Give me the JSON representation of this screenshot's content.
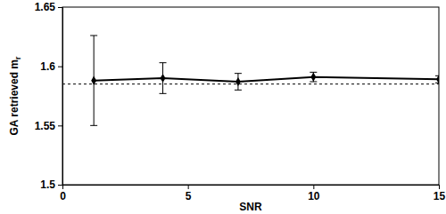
{
  "chart_data": {
    "type": "line",
    "xlabel": "SNR",
    "ylabel": "GA retrieved m",
    "ylabel_sub": "r",
    "x": [
      1.25,
      4,
      7,
      10,
      15
    ],
    "series": [
      {
        "values": [
          1.588,
          1.59,
          1.587,
          1.591,
          1.589
        ],
        "errors": [
          0.038,
          0.013,
          0.007,
          0.004,
          0.003
        ],
        "color": "#000000",
        "marker": "diamond",
        "line_style": "solid"
      }
    ],
    "hlines": [
      {
        "value": 1.585,
        "color": "#000000",
        "line_style": "dashed"
      }
    ],
    "xlim": [
      0,
      15
    ],
    "xticks": [
      0,
      5,
      10,
      15
    ],
    "ylim": [
      1.5,
      1.65
    ],
    "yticks": [
      1.5,
      1.55,
      1.6,
      1.65
    ],
    "grid": false
  }
}
